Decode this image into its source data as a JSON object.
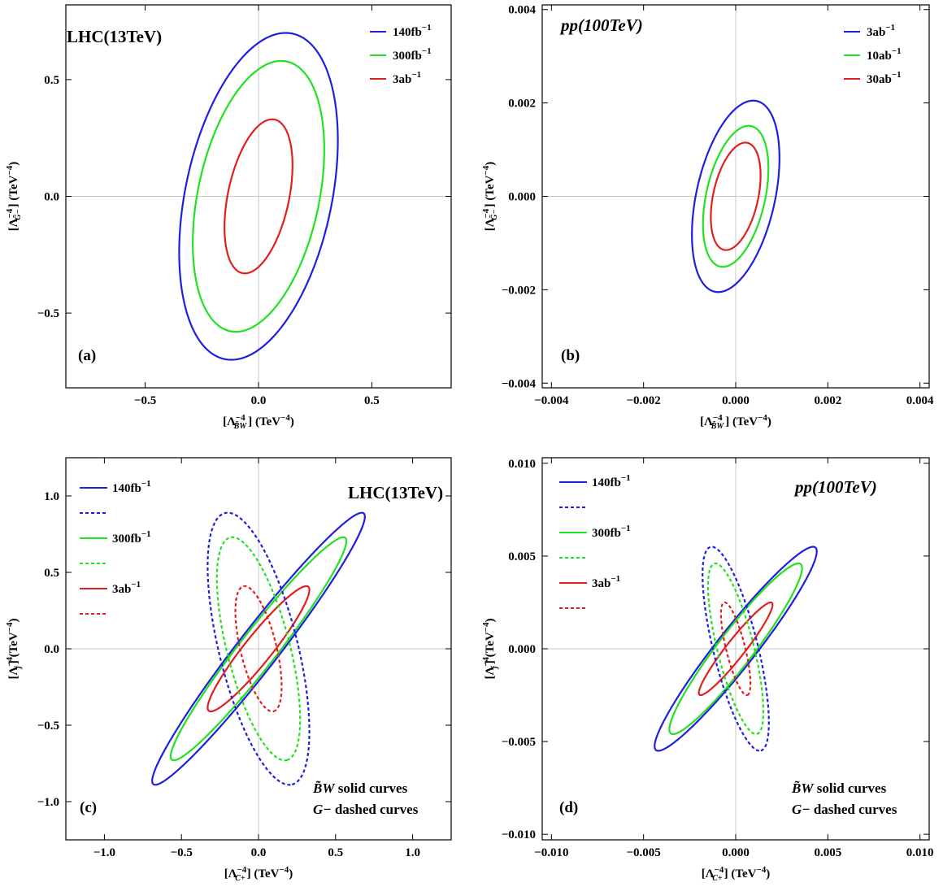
{
  "colors": {
    "blue": "#1f1fe0",
    "green": "#22e022",
    "red": "#e01f1f",
    "grid": "#c8c8c8",
    "frame": "#000000"
  },
  "chart_data": [
    {
      "type": "line",
      "tag": "(a)",
      "title": "LHC(13TeV)",
      "xlabel": {
        "main": "[Λ",
        "sub": "B̃W",
        "sup": "−4",
        "unit": "] (TeV",
        "unit_sup": "−4",
        "close": ")"
      },
      "ylabel": {
        "main": "[Λ",
        "sub": "G̃−",
        "sup": "−4",
        "unit": "] (TeV",
        "unit_sup": "−4",
        "close": ")"
      },
      "xlim": [
        -0.85,
        0.85
      ],
      "ylim": [
        -0.82,
        0.82
      ],
      "xticks": [
        -0.5,
        0.0,
        0.5
      ],
      "xtick_labels": [
        "−0.5",
        "0.0",
        "0.5"
      ],
      "yticks": [
        -0.5,
        0.0,
        0.5
      ],
      "ytick_labels": [
        "−0.5",
        "0.0",
        "0.5"
      ],
      "grid": "zero-lines",
      "legend_placement": "top-right",
      "legend": [
        {
          "label": "140fb",
          "sup": "−1",
          "color": "blue",
          "style": "solid"
        },
        {
          "label": "300fb",
          "sup": "−1",
          "color": "green",
          "style": "solid"
        },
        {
          "label": "3ab",
          "sup": "−1",
          "color": "red",
          "style": "solid"
        }
      ],
      "notes": [],
      "series": [
        {
          "color": "blue",
          "style": "solid",
          "xmax": 0.35,
          "ymax": 0.7,
          "x_at_ymax": 0.12
        },
        {
          "color": "green",
          "style": "solid",
          "xmax": 0.29,
          "ymax": 0.58,
          "x_at_ymax": 0.1
        },
        {
          "color": "red",
          "style": "solid",
          "xmax": 0.15,
          "ymax": 0.33,
          "x_at_ymax": 0.06
        }
      ]
    },
    {
      "type": "line",
      "tag": "(b)",
      "title": "pp(100TeV)",
      "xlabel": {
        "main": "[Λ",
        "sub": "B̃W",
        "sup": "−4",
        "unit": "] (TeV",
        "unit_sup": "−4",
        "close": ")"
      },
      "ylabel": {
        "main": "[Λ",
        "sub": "G̃−",
        "sup": "−4",
        "unit": "] (TeV",
        "unit_sup": "−4",
        "close": ")"
      },
      "xlim": [
        -0.0042,
        0.0042
      ],
      "ylim": [
        -0.0041,
        0.0041
      ],
      "xticks": [
        -0.004,
        -0.002,
        0.0,
        0.002,
        0.004
      ],
      "xtick_labels": [
        "−0.004",
        "−0.002",
        "0.000",
        "0.002",
        "0.004"
      ],
      "yticks": [
        -0.004,
        -0.002,
        0.0,
        0.002,
        0.004
      ],
      "ytick_labels": [
        "−0.004",
        "−0.002",
        "0.000",
        "0.002",
        "0.004"
      ],
      "grid": "zero-lines",
      "legend_placement": "top-right",
      "legend": [
        {
          "label": "3ab",
          "sup": "−1",
          "color": "blue",
          "style": "solid"
        },
        {
          "label": "10ab",
          "sup": "−1",
          "color": "green",
          "style": "solid"
        },
        {
          "label": "30ab",
          "sup": "−1",
          "color": "red",
          "style": "solid"
        }
      ],
      "notes": [],
      "series": [
        {
          "color": "blue",
          "style": "solid",
          "xmax": 0.00095,
          "ymax": 0.00205,
          "x_at_ymax": 0.00038
        },
        {
          "color": "green",
          "style": "solid",
          "xmax": 0.00071,
          "ymax": 0.00151,
          "x_at_ymax": 0.00028
        },
        {
          "color": "red",
          "style": "solid",
          "xmax": 0.00054,
          "ymax": 0.00115,
          "x_at_ymax": 0.00021
        }
      ]
    },
    {
      "type": "line",
      "tag": "(c)",
      "title": "LHC(13TeV)",
      "xlabel": {
        "main": "[Λ",
        "sub": "C+",
        "sup": "−4",
        "unit": "] (TeV",
        "unit_sup": "−4",
        "close": ")"
      },
      "ylabel": {
        "main": "[Λ",
        "sub": "j",
        "sup": "−4",
        "unit": "] (TeV",
        "unit_sup": "−4",
        "close": ")"
      },
      "xlim": [
        -1.25,
        1.25
      ],
      "ylim": [
        -1.25,
        1.25
      ],
      "xticks": [
        -1.0,
        -0.5,
        0.0,
        0.5,
        1.0
      ],
      "xtick_labels": [
        "−1.0",
        "−0.5",
        "0.0",
        "0.5",
        "1.0"
      ],
      "yticks": [
        -1.0,
        -0.5,
        0.0,
        0.5,
        1.0
      ],
      "ytick_labels": [
        "−1.0",
        "−0.5",
        "0.0",
        "0.5",
        "1.0"
      ],
      "grid": "zero-lines",
      "legend_placement": "top-left",
      "legend": [
        {
          "label": "140fb",
          "sup": "−1",
          "color": "blue",
          "style": "solid"
        },
        {
          "label": "",
          "sup": "",
          "color": "blue",
          "style": "dashed"
        },
        {
          "label": "300fb",
          "sup": "−1",
          "color": "green",
          "style": "solid"
        },
        {
          "label": "",
          "sup": "",
          "color": "green",
          "style": "dashed"
        },
        {
          "label": "3ab",
          "sup": "−1",
          "color": "red",
          "style": "solid"
        },
        {
          "label": "",
          "sup": "",
          "color": "red",
          "style": "dashed"
        }
      ],
      "notes": [
        {
          "math": "B̃W",
          "text": " solid curves"
        },
        {
          "math": "G−",
          "text": "  dashed curves"
        }
      ],
      "series": [
        {
          "color": "blue",
          "style": "solid",
          "xmax": 0.69,
          "ymax": 0.89,
          "x_at_ymax": 0.67
        },
        {
          "color": "green",
          "style": "solid",
          "xmax": 0.57,
          "ymax": 0.73,
          "x_at_ymax": 0.55
        },
        {
          "color": "red",
          "style": "solid",
          "xmax": 0.33,
          "ymax": 0.41,
          "x_at_ymax": 0.31
        },
        {
          "color": "blue",
          "style": "dashed",
          "xmax": 0.33,
          "ymax": 0.89,
          "x_at_ymax": -0.2
        },
        {
          "color": "green",
          "style": "dashed",
          "xmax": 0.27,
          "ymax": 0.73,
          "x_at_ymax": -0.17
        },
        {
          "color": "red",
          "style": "dashed",
          "xmax": 0.15,
          "ymax": 0.41,
          "x_at_ymax": -0.09
        }
      ]
    },
    {
      "type": "line",
      "tag": "(d)",
      "title": "pp(100TeV)",
      "xlabel": {
        "main": "[Λ",
        "sub": "C+",
        "sup": "−4",
        "unit": "] (TeV",
        "unit_sup": "−4",
        "close": ")"
      },
      "ylabel": {
        "main": "[Λ",
        "sub": "j",
        "sup": "−4",
        "unit": "] (TeV",
        "unit_sup": "−4",
        "close": ")"
      },
      "xlim": [
        -0.0105,
        0.0105
      ],
      "ylim": [
        -0.0103,
        0.0103
      ],
      "xticks": [
        -0.01,
        -0.005,
        0.0,
        0.005,
        0.01
      ],
      "xtick_labels": [
        "−0.010",
        "−0.005",
        "0.000",
        "0.005",
        "0.010"
      ],
      "yticks": [
        -0.01,
        -0.005,
        0.0,
        0.005,
        0.01
      ],
      "ytick_labels": [
        "−0.010",
        "−0.005",
        "0.000",
        "0.005",
        "0.010"
      ],
      "grid": "zero-lines",
      "legend_placement": "top-left",
      "legend": [
        {
          "label": "140fb",
          "sup": "−1",
          "color": "blue",
          "style": "solid"
        },
        {
          "label": "",
          "sup": "",
          "color": "blue",
          "style": "dashed"
        },
        {
          "label": "300fb",
          "sup": "−1",
          "color": "green",
          "style": "solid"
        },
        {
          "label": "",
          "sup": "",
          "color": "green",
          "style": "dashed"
        },
        {
          "label": "3ab",
          "sup": "−1",
          "color": "red",
          "style": "solid"
        },
        {
          "label": "",
          "sup": "",
          "color": "red",
          "style": "dashed"
        }
      ],
      "notes": [
        {
          "math": "B̃W",
          "text": " solid curves"
        },
        {
          "math": "G−",
          "text": "  dashed curves"
        }
      ],
      "series": [
        {
          "color": "blue",
          "style": "solid",
          "xmax": 0.0044,
          "ymax": 0.0055,
          "x_at_ymax": 0.0042
        },
        {
          "color": "green",
          "style": "solid",
          "xmax": 0.0036,
          "ymax": 0.0046,
          "x_at_ymax": 0.0034
        },
        {
          "color": "red",
          "style": "solid",
          "xmax": 0.002,
          "ymax": 0.0025,
          "x_at_ymax": 0.0019
        },
        {
          "color": "blue",
          "style": "dashed",
          "xmax": 0.0018,
          "ymax": 0.0055,
          "x_at_ymax": -0.0013
        },
        {
          "color": "green",
          "style": "dashed",
          "xmax": 0.0015,
          "ymax": 0.0046,
          "x_at_ymax": -0.0011
        },
        {
          "color": "red",
          "style": "dashed",
          "xmax": 0.0008,
          "ymax": 0.0025,
          "x_at_ymax": -0.0006
        }
      ]
    }
  ]
}
